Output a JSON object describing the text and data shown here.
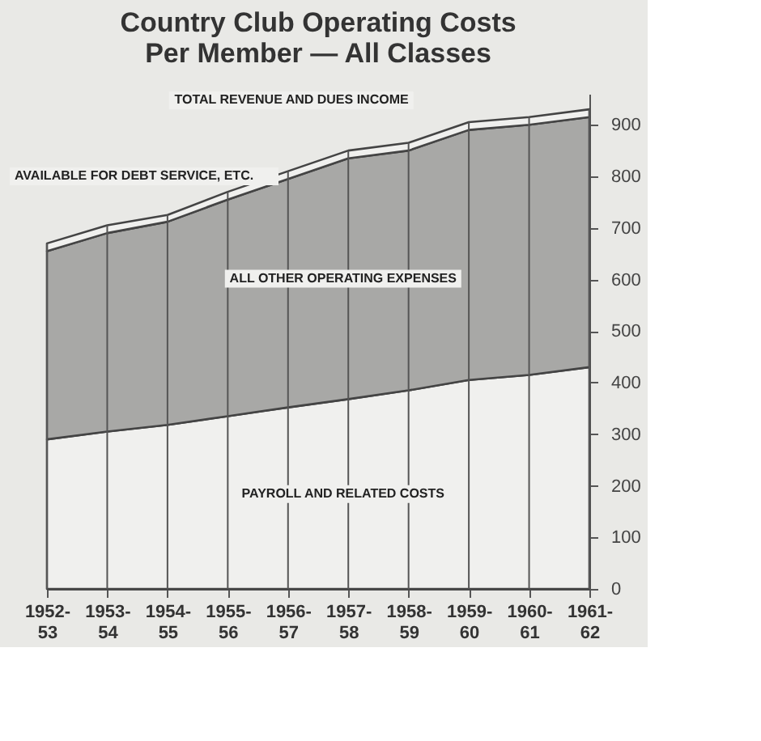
{
  "chart_data": {
    "type": "area",
    "title": [
      "Country Club Operating Costs",
      "Per Member — All Classes"
    ],
    "categories": [
      "1952-53",
      "1953-54",
      "1954-55",
      "1955-56",
      "1956-57",
      "1957-58",
      "1958-59",
      "1959-60",
      "1960-61",
      "1961-62"
    ],
    "stacked": true,
    "series": [
      {
        "name": "PAYROLL AND RELATED COSTS",
        "color": "#f0f0ee",
        "values": [
          290,
          305,
          318,
          335,
          352,
          368,
          385,
          405,
          415,
          430
        ]
      },
      {
        "name": "ALL OTHER OPERATING EXPENSES",
        "color": "#a8a8a6",
        "values": [
          365,
          385,
          394,
          420,
          443,
          467,
          465,
          485,
          485,
          485
        ]
      },
      {
        "name": "AVAILABLE FOR DEBT SERVICE, ETC.",
        "color": "#f0f0ee",
        "values": [
          15,
          15,
          13,
          15,
          15,
          15,
          15,
          15,
          15,
          15
        ]
      }
    ],
    "annotations": [
      {
        "text": "TOTAL REVENUE AND DUES INCOME",
        "x": "1958-59",
        "y": 865
      }
    ],
    "ylim": [
      0,
      960
    ],
    "yticks": [
      0,
      100,
      200,
      300,
      400,
      500,
      600,
      700,
      800,
      900
    ],
    "grid": "x"
  }
}
